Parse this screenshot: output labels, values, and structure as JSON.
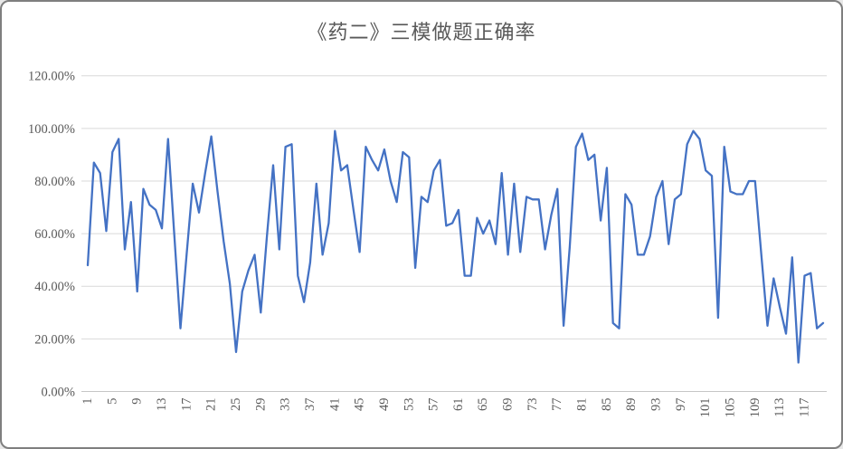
{
  "chart_data": {
    "type": "line",
    "title": "《药二》三模做题正确率",
    "xlabel": "",
    "ylabel": "",
    "x_count": 120,
    "x_start": 1,
    "x_tick_step": 4,
    "x_tick_labels": [
      "1",
      "5",
      "9",
      "13",
      "17",
      "21",
      "25",
      "29",
      "33",
      "37",
      "41",
      "45",
      "49",
      "53",
      "57",
      "61",
      "65",
      "69",
      "73",
      "77",
      "81",
      "85",
      "89",
      "93",
      "97",
      "101",
      "105",
      "109",
      "113",
      "117"
    ],
    "y_tick_labels": [
      "0.00%",
      "20.00%",
      "40.00%",
      "60.00%",
      "80.00%",
      "100.00%",
      "120.00%"
    ],
    "ylim": [
      0,
      120
    ],
    "grid": true,
    "legend": false,
    "values_percent": [
      48,
      87,
      83,
      61,
      91,
      96,
      54,
      72,
      38,
      77,
      71,
      69,
      62,
      96,
      60,
      24,
      52,
      79,
      68,
      83,
      97,
      76,
      57,
      41,
      15,
      38,
      46,
      52,
      30,
      59,
      86,
      54,
      93,
      94,
      44,
      34,
      49,
      79,
      52,
      64,
      99,
      84,
      86,
      69,
      53,
      93,
      88,
      84,
      92,
      80,
      72,
      91,
      89,
      47,
      74,
      72,
      84,
      88,
      63,
      64,
      69,
      44,
      44,
      66,
      60,
      65,
      56,
      83,
      52,
      79,
      53,
      74,
      73,
      73,
      54,
      67,
      77,
      25,
      55,
      93,
      98,
      88,
      90,
      65,
      85,
      26,
      24,
      75,
      71,
      52,
      52,
      59,
      74,
      80,
      56,
      73,
      75,
      94,
      99,
      96,
      84,
      82,
      28,
      93,
      76,
      75,
      75,
      80,
      80,
      52,
      25,
      43,
      32,
      22,
      51,
      11,
      44,
      45,
      24,
      26
    ]
  },
  "style": {
    "series_color": "#4472C4",
    "gridline_color": "#D9D9D9",
    "axis_line_color": "#C6C6C6",
    "text_color": "#595959",
    "frame_border_color": "#7f7f7f",
    "background_color": "#FFFFFF"
  }
}
